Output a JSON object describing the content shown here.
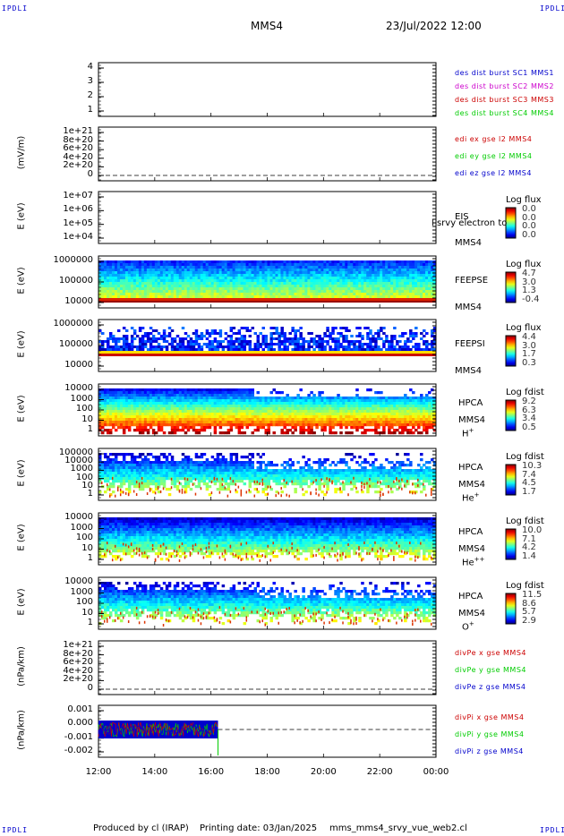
{
  "header": {
    "corner_tl": "IPDLI",
    "corner_tr": "IPDLI",
    "corner_bl": "IPDLI",
    "corner_br": "IPDLI",
    "spacecraft": "MMS4",
    "datetime": "23/Jul/2022 12:00"
  },
  "footer": {
    "produced": "Produced by cl (IRAP)",
    "printing": "Printing date: 03/Jan/2025",
    "file": "mms_mms4_srvy_vue_web2.cl"
  },
  "colors": {
    "blue": "#0000cc",
    "magenta": "#cc00cc",
    "red": "#cc0000",
    "green": "#00cc00"
  },
  "chart_data": {
    "type": "heatmap",
    "xlabel": "",
    "x_ticks": [
      "12:00",
      "14:00",
      "16:00",
      "18:00",
      "20:00",
      "22:00",
      "00:00"
    ],
    "panels": [
      {
        "id": "burst",
        "ylabel": "",
        "yticks": [
          "4",
          "3",
          "2",
          "1"
        ],
        "legend": [
          {
            "text": "des dist burst SC1 MMS1",
            "color": "blue"
          },
          {
            "text": "des dist burst SC2 MMS2",
            "color": "magenta"
          },
          {
            "text": "des dist burst SC3 MMS3",
            "color": "red"
          },
          {
            "text": "des dist burst SC4 MMS4",
            "color": "green"
          }
        ]
      },
      {
        "id": "edi",
        "ylabel": "(mV/m)",
        "yticks": [
          "1e+21",
          "8e+20",
          "6e+20",
          "4e+20",
          "2e+20",
          "0"
        ],
        "legend": [
          {
            "text": "edi ex gse l2 MMS4",
            "color": "red"
          },
          {
            "text": "edi ey gse l2 MMS4",
            "color": "green"
          },
          {
            "text": "edi ez gse l2 MMS4",
            "color": "blue"
          }
        ]
      },
      {
        "id": "eis",
        "ylabel": "E (eV)",
        "yticks": [
          "1e+07",
          "1e+06",
          "1e+05",
          "1e+04"
        ],
        "right_labels": [
          "EIS",
          "MMS4"
        ],
        "overlay_text": "l srvy electron to",
        "cbar_title": "Log flux",
        "cbar_values": [
          "0.0",
          "0.0",
          "0.0",
          "0.0"
        ]
      },
      {
        "id": "feepse",
        "ylabel": "E (eV)",
        "yticks": [
          "1000000",
          "100000",
          "10000"
        ],
        "right_labels": [
          "FEEPSE",
          "MMS4"
        ],
        "cbar_title": "Log flux",
        "cbar_values": [
          "4.7",
          "3.0",
          "1.3",
          "-0.4"
        ]
      },
      {
        "id": "feepsi",
        "ylabel": "E (eV)",
        "yticks": [
          "1000000",
          "100000",
          "10000"
        ],
        "right_labels": [
          "FEEPSI",
          "MMS4"
        ],
        "cbar_title": "Log flux",
        "cbar_values": [
          "4.4",
          "3.0",
          "1.7",
          "0.3"
        ]
      },
      {
        "id": "hpca_h",
        "ylabel": "E (eV)",
        "yticks": [
          "10000",
          "1000",
          "100",
          "10",
          "1"
        ],
        "right_labels": [
          "HPCA",
          "MMS4"
        ],
        "species": "H",
        "species_sup": "+",
        "cbar_title": "Log fdist",
        "cbar_values": [
          "9.2",
          "6.3",
          "3.4",
          "0.5"
        ]
      },
      {
        "id": "hpca_he",
        "ylabel": "E (eV)",
        "yticks": [
          "100000",
          "10000",
          "1000",
          "100",
          "10",
          "1"
        ],
        "right_labels": [
          "HPCA",
          "MMS4"
        ],
        "species": "He",
        "species_sup": "+",
        "cbar_title": "Log fdist",
        "cbar_values": [
          "10.3",
          "7.4",
          "4.5",
          "1.7"
        ]
      },
      {
        "id": "hpca_he2",
        "ylabel": "E (eV)",
        "yticks": [
          "10000",
          "1000",
          "100",
          "10",
          "1"
        ],
        "right_labels": [
          "HPCA",
          "MMS4"
        ],
        "species": "He",
        "species_sup": "++",
        "cbar_title": "Log fdist",
        "cbar_values": [
          "10.0",
          "7.1",
          "4.2",
          "1.4"
        ]
      },
      {
        "id": "hpca_o",
        "ylabel": "E (eV)",
        "yticks": [
          "10000",
          "1000",
          "100",
          "10",
          "1"
        ],
        "right_labels": [
          "HPCA",
          "MMS4"
        ],
        "species": "O",
        "species_sup": "+",
        "cbar_title": "Log fdist",
        "cbar_values": [
          "11.5",
          "8.6",
          "5.7",
          "2.9"
        ]
      },
      {
        "id": "divpe",
        "ylabel": "(nPa/km)",
        "yticks": [
          "1e+21",
          "8e+20",
          "6e+20",
          "4e+20",
          "2e+20",
          "0"
        ],
        "legend": [
          {
            "text": "divPe x gse MMS4",
            "color": "red"
          },
          {
            "text": "divPe y gse MMS4",
            "color": "green"
          },
          {
            "text": "divPe z gse MMS4",
            "color": "blue"
          }
        ]
      },
      {
        "id": "divpi",
        "ylabel": "(nPa/km)",
        "yticks": [
          "0.001",
          "0.000",
          "-0.001",
          "-0.002"
        ],
        "legend": [
          {
            "text": "divPi x gse MMS4",
            "color": "red"
          },
          {
            "text": "divPi y gse MMS4",
            "color": "green"
          },
          {
            "text": "divPi z gse MMS4",
            "color": "blue"
          }
        ]
      }
    ]
  }
}
